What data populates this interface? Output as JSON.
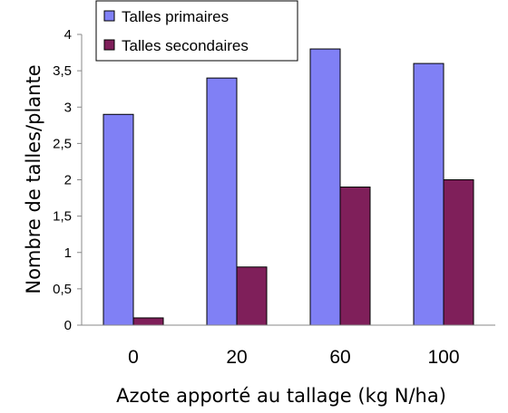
{
  "chart_data": {
    "type": "bar",
    "categories": [
      "0",
      "20",
      "60",
      "100"
    ],
    "series": [
      {
        "name": "Talles primaires",
        "values": [
          2.9,
          3.4,
          3.8,
          3.6
        ],
        "color": "#8080f5"
      },
      {
        "name": "Talles secondaires",
        "values": [
          0.1,
          0.8,
          1.9,
          2.0
        ],
        "color": "#7f1f5a"
      }
    ],
    "xlabel": "Azote apporté au tallage (kg N/ha)",
    "ylabel": "Nombre de talles/plante",
    "ylim": [
      0,
      4
    ],
    "yticks": [
      "0",
      "0,5",
      "1",
      "1,5",
      "2",
      "2,5",
      "3",
      "3,5",
      "4"
    ],
    "grid": false,
    "legend_position": "top-left"
  }
}
